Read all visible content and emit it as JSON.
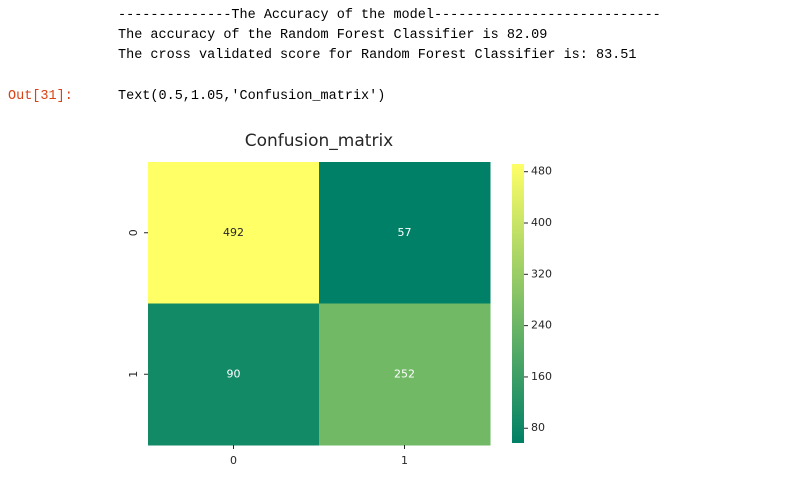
{
  "output_lines": [
    "--------------The Accuracy of the model----------------------------",
    "The accuracy of the Random Forest Classifier is 82.09",
    "The cross validated score for Random Forest Classifier is: 83.51"
  ],
  "out_prompt": "Out[31]:",
  "out_text": "Text(0.5,1.05,'Confusion_matrix')",
  "chart_data": {
    "type": "heatmap",
    "title": "Confusion_matrix",
    "x_categories": [
      "0",
      "1"
    ],
    "y_categories": [
      "0",
      "1"
    ],
    "values": [
      [
        492,
        57
      ],
      [
        90,
        252
      ]
    ],
    "cmap": [
      "#008066",
      "#ffff66"
    ],
    "clim": [
      57,
      492
    ],
    "cticks": [
      80,
      160,
      240,
      320,
      400,
      480
    ]
  }
}
